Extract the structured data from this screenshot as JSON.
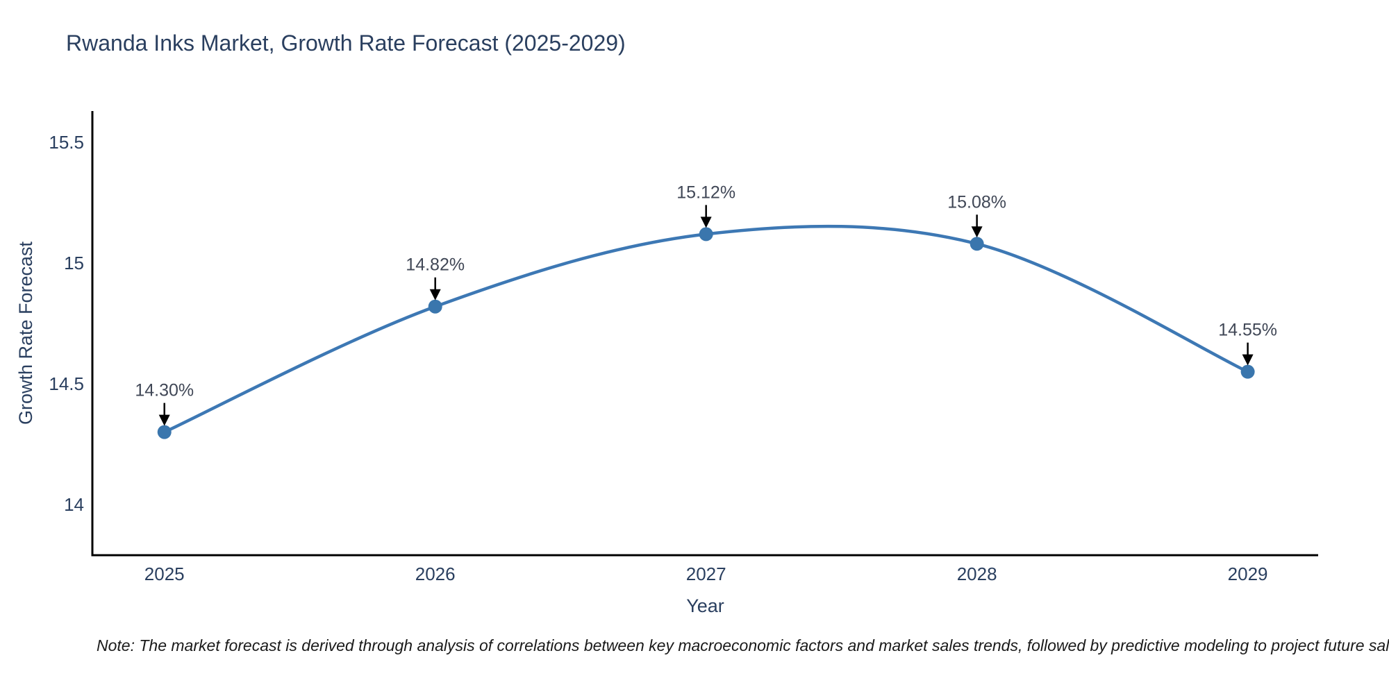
{
  "title": "Rwanda Inks Market, Growth Rate Forecast (2025-2029)",
  "footnote": "Note: The market forecast is derived through analysis of correlations between key macroeconomic factors and market sales trends, followed by predictive modeling to project future sales",
  "chart_data": {
    "type": "line",
    "title": "Rwanda Inks Market, Growth Rate Forecast (2025-2029)",
    "xlabel": "Year",
    "ylabel": "Growth Rate Forecast",
    "x": [
      2025,
      2026,
      2027,
      2028,
      2029
    ],
    "x_tick_labels": [
      "2025",
      "2026",
      "2027",
      "2028",
      "2029"
    ],
    "series": [
      {
        "name": "Growth Rate Forecast",
        "values": [
          14.3,
          14.82,
          15.12,
          15.08,
          14.55
        ],
        "point_labels": [
          "14.30%",
          "14.82%",
          "15.12%",
          "15.08%",
          "14.55%"
        ]
      }
    ],
    "y_ticks": [
      14,
      14.5,
      15,
      15.5
    ],
    "y_tick_labels": [
      "14",
      "14.5",
      "15",
      "15.5"
    ],
    "xlim": [
      2024.734,
      2029.26
    ],
    "ylim": [
      13.79,
      15.63
    ],
    "line_shape": "spline",
    "grid": false,
    "legend_position": "none",
    "colors": {
      "line": "#3d78b4",
      "marker": "#3a76ad",
      "axis_line": "#000000",
      "tick_text": "#2a3f5f",
      "annotation_text": "#404756",
      "annotation_arrow": "#000000",
      "background": "#ffffff"
    }
  }
}
